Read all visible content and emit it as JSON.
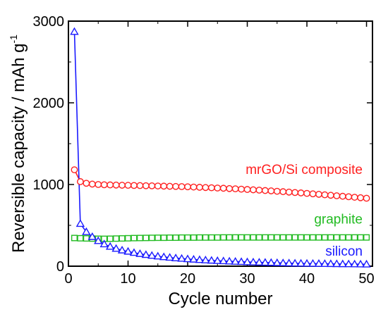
{
  "chart_data": {
    "type": "scatter",
    "title": "",
    "xlabel": "Cycle number",
    "ylabel": "Reversible capacity / mAh g",
    "ylabel_superscript": "-1",
    "xlim": [
      0,
      51
    ],
    "ylim": [
      0,
      3000
    ],
    "x_ticks": [
      0,
      10,
      20,
      30,
      40,
      50
    ],
    "y_ticks": [
      0,
      1000,
      2000,
      3000
    ],
    "x_tick_labels": [
      "0",
      "10",
      "20",
      "30",
      "40",
      "50"
    ],
    "y_tick_labels": [
      "0",
      "1000",
      "2000",
      "3000"
    ],
    "grid": false,
    "legend": "inline labels next to series",
    "series": [
      {
        "name": "mrGO/Si composite",
        "marker": "circle",
        "color": "#ff2020",
        "x": [
          1,
          2,
          3,
          4,
          5,
          6,
          7,
          8,
          9,
          10,
          11,
          12,
          13,
          14,
          15,
          16,
          17,
          18,
          19,
          20,
          21,
          22,
          23,
          24,
          25,
          26,
          27,
          28,
          29,
          30,
          31,
          32,
          33,
          34,
          35,
          36,
          37,
          38,
          39,
          40,
          41,
          42,
          43,
          44,
          45,
          46,
          47,
          48,
          49,
          50
        ],
        "y": [
          1180,
          1035,
          1015,
          1005,
          1000,
          997,
          995,
          993,
          991,
          990,
          988,
          987,
          985,
          984,
          982,
          980,
          978,
          976,
          974,
          972,
          969,
          966,
          963,
          960,
          957,
          954,
          950,
          947,
          943,
          939,
          935,
          931,
          926,
          922,
          917,
          912,
          907,
          902,
          897,
          891,
          886,
          880,
          874,
          868,
          862,
          856,
          850,
          844,
          838,
          832
        ]
      },
      {
        "name": "graphite",
        "marker": "square",
        "color": "#22bb22",
        "x": [
          1,
          2,
          3,
          4,
          5,
          6,
          7,
          8,
          9,
          10,
          11,
          12,
          13,
          14,
          15,
          16,
          17,
          18,
          19,
          20,
          21,
          22,
          23,
          24,
          25,
          26,
          27,
          28,
          29,
          30,
          31,
          32,
          33,
          34,
          35,
          36,
          37,
          38,
          39,
          40,
          41,
          42,
          43,
          44,
          45,
          46,
          47,
          48,
          49,
          50
        ],
        "y": [
          345,
          342,
          340,
          338,
          336,
          335,
          336,
          338,
          340,
          342,
          344,
          345,
          346,
          347,
          348,
          348,
          349,
          349,
          350,
          350,
          350,
          351,
          351,
          351,
          351,
          352,
          352,
          352,
          352,
          352,
          352,
          352,
          352,
          352,
          352,
          352,
          352,
          352,
          352,
          352,
          352,
          352,
          352,
          352,
          352,
          352,
          352,
          352,
          352,
          352
        ]
      },
      {
        "name": "silicon",
        "marker": "triangle",
        "color": "#1a1aff",
        "x": [
          1,
          2,
          3,
          4,
          5,
          6,
          7,
          8,
          9,
          10,
          11,
          12,
          13,
          14,
          15,
          16,
          17,
          18,
          19,
          20,
          21,
          22,
          23,
          24,
          25,
          26,
          27,
          28,
          29,
          30,
          31,
          32,
          33,
          34,
          35,
          36,
          37,
          38,
          39,
          40,
          41,
          42,
          43,
          44,
          45,
          46,
          47,
          48,
          49,
          50
        ],
        "y": [
          2870,
          520,
          420,
          360,
          310,
          270,
          240,
          215,
          195,
          180,
          165,
          152,
          140,
          130,
          121,
          113,
          106,
          99,
          93,
          88,
          83,
          78,
          74,
          70,
          66,
          63,
          60,
          57,
          54,
          51,
          49,
          47,
          45,
          43,
          41,
          39,
          37,
          35,
          34,
          33,
          32,
          31,
          30,
          29,
          28,
          27,
          26,
          25,
          24,
          23
        ]
      }
    ]
  }
}
